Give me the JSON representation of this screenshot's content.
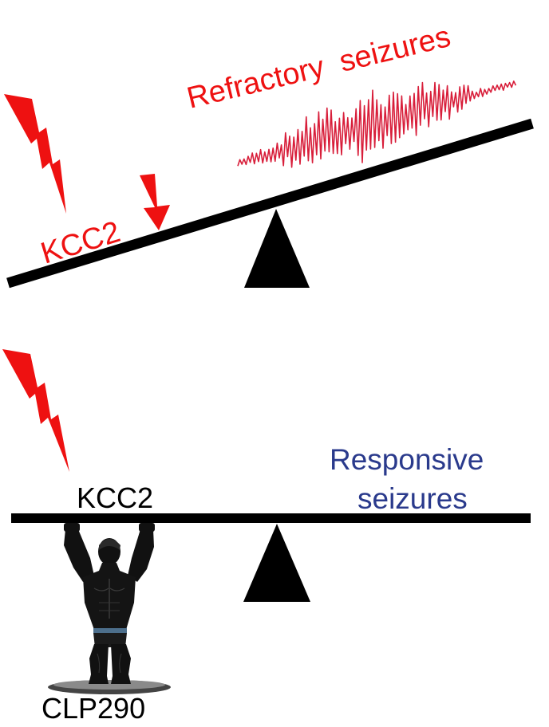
{
  "top_panel": {
    "label_refractory": "Refractory  seizures",
    "label_kcc2": "KCC2"
  },
  "bottom_panel": {
    "label_responsive_line1": "Responsive",
    "label_responsive_line2": "seizures",
    "label_kcc2": "KCC2",
    "label_drug": "CLP290"
  },
  "colors": {
    "accent_red": "#ee1111",
    "eeg_trace": "#d81e3a",
    "responsive_blue": "#2a3a8c",
    "ink": "#000000"
  },
  "icons": {
    "lightning": "lightning-bolt-icon",
    "down_arrow": "down-arrow-icon",
    "strongman": "atlas-strongman-silhouette"
  }
}
